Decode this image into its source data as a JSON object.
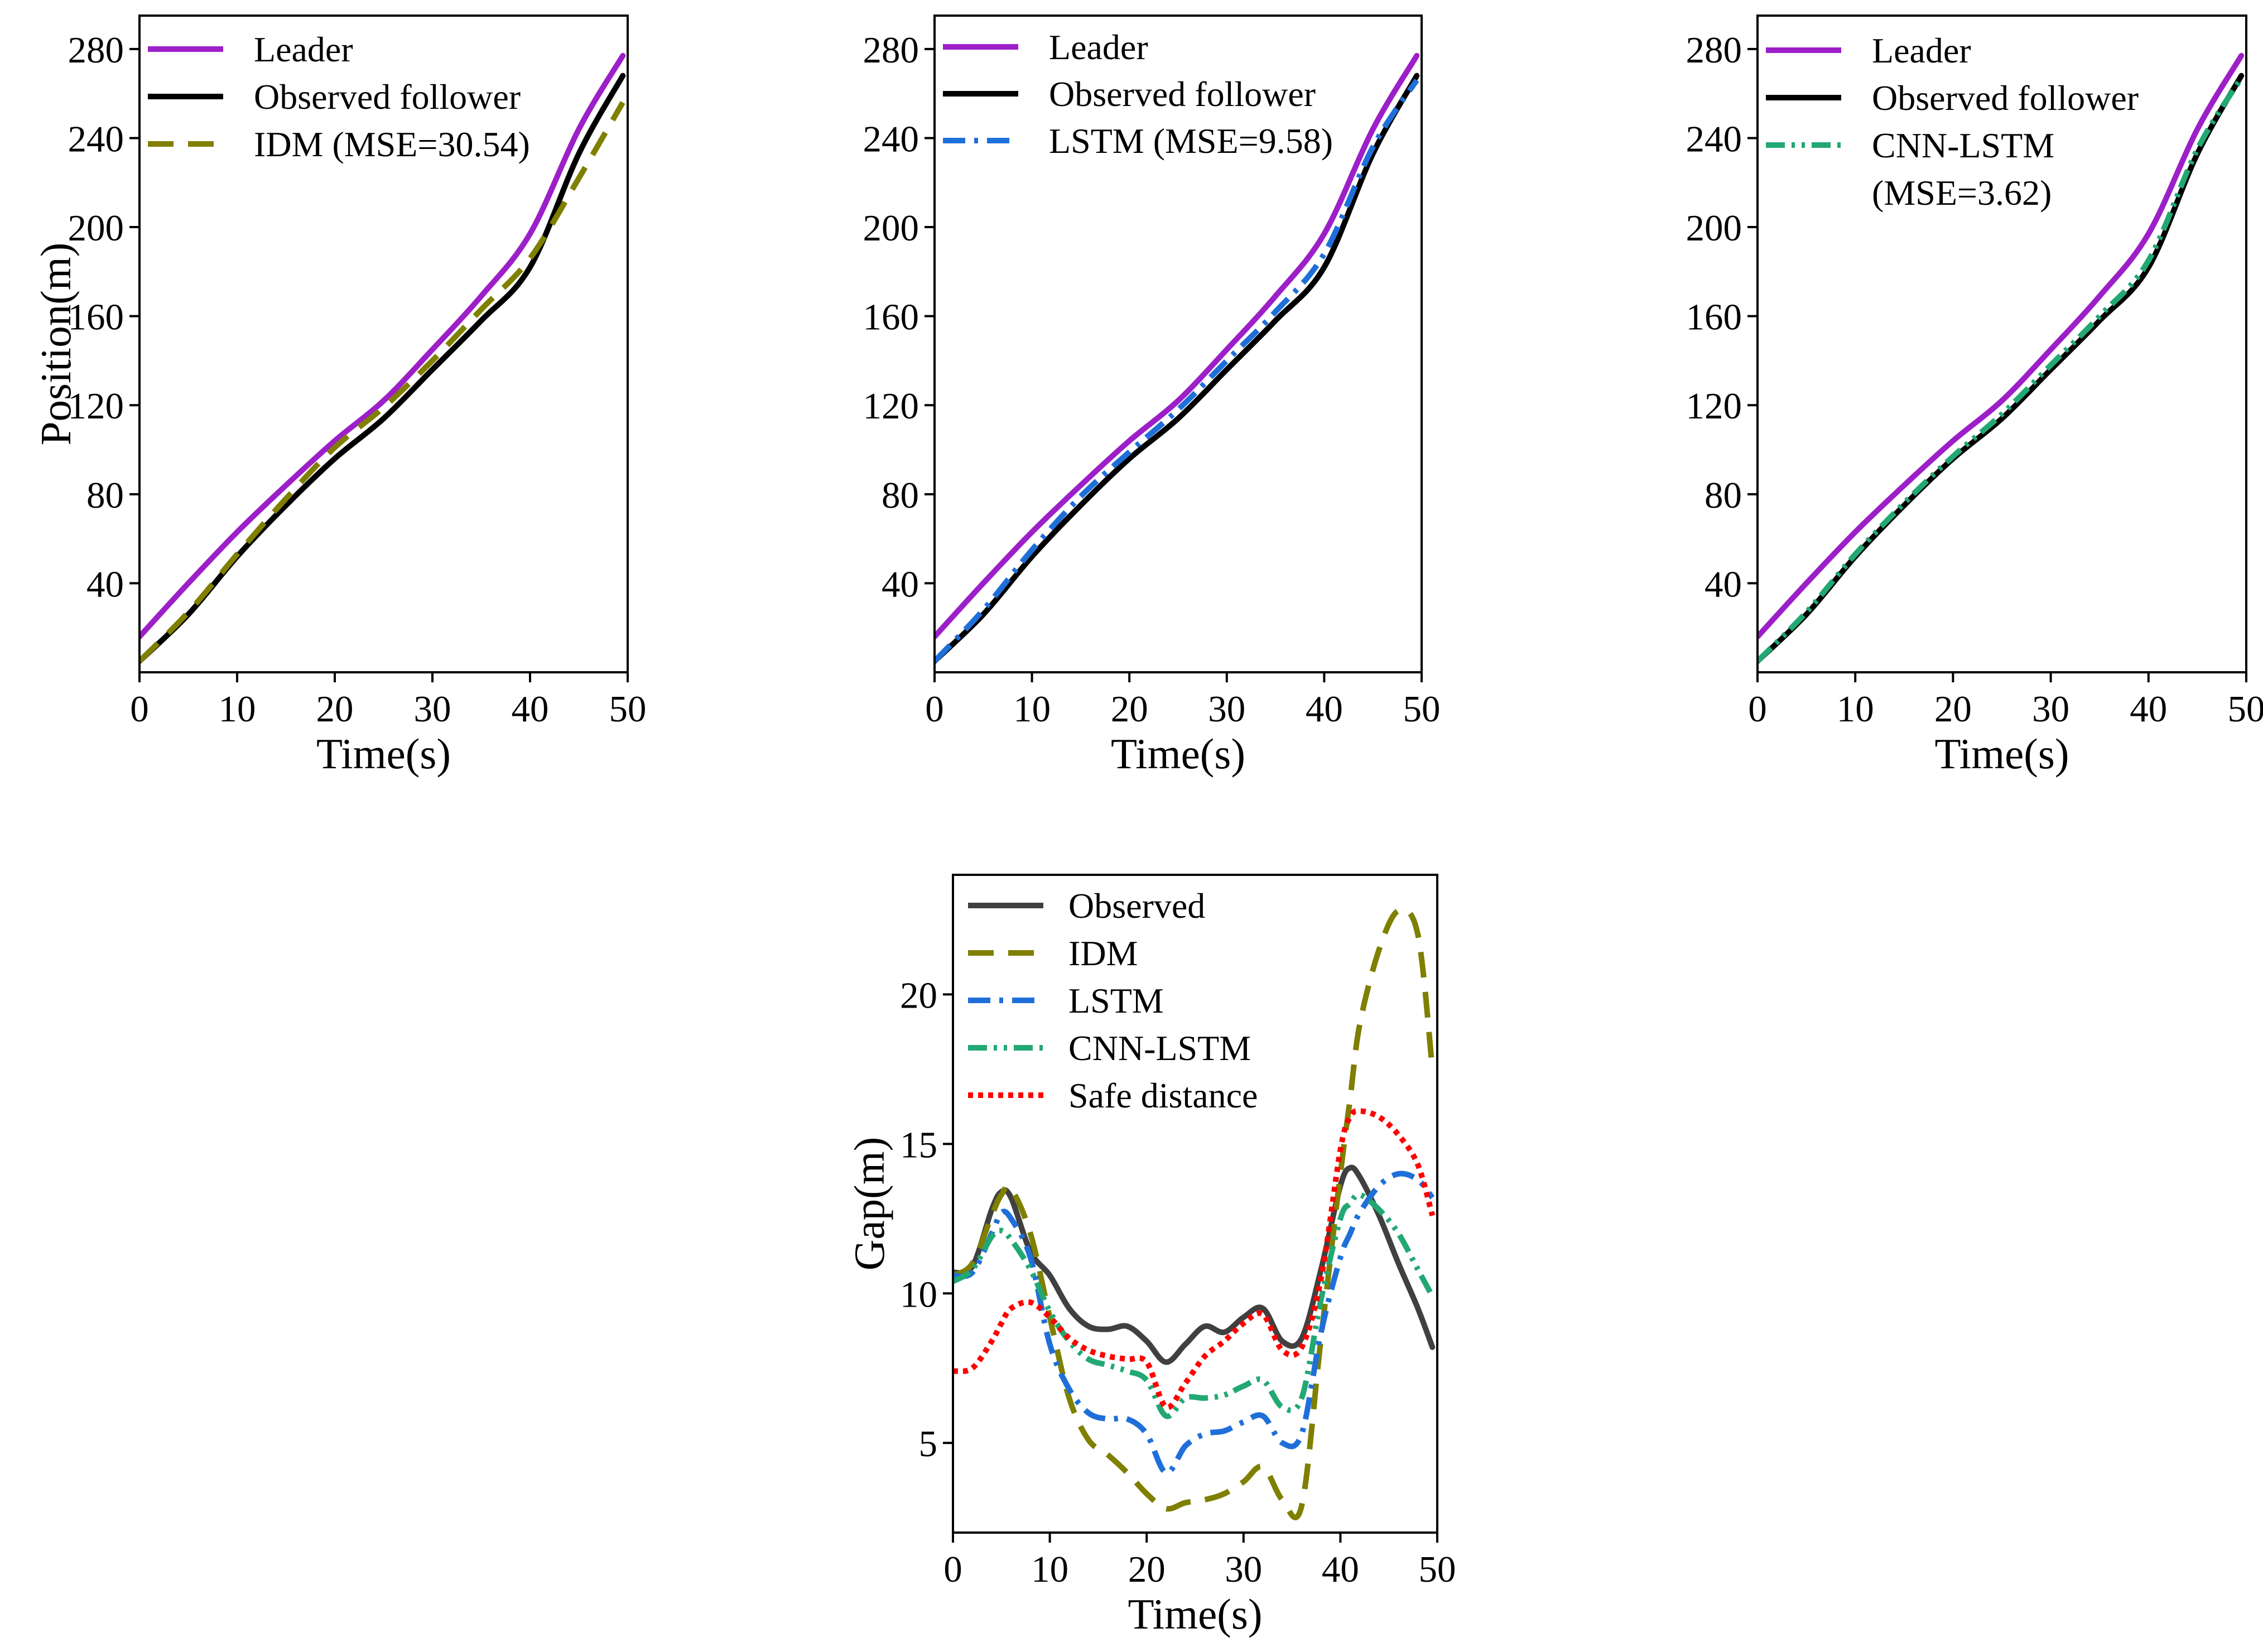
{
  "figure": {
    "colors": {
      "leader": "#9C1FC8",
      "observed_follower": "#000000",
      "observed_gap": "#404040",
      "idm": "#7F7F00",
      "lstm": "#1F6FD9",
      "cnn_lstm": "#22A873",
      "safe_distance": "#FF0000"
    }
  },
  "chart_data": [
    {
      "id": "panel_idm",
      "type": "line",
      "xlabel": "Time(s)",
      "ylabel": "Position(m)",
      "xlim": [
        0,
        50
      ],
      "ylim": [
        0,
        295
      ],
      "xticks": [
        0,
        10,
        20,
        30,
        40,
        50
      ],
      "yticks": [
        40,
        80,
        120,
        160,
        200,
        240,
        280
      ],
      "legend_position": "top-left",
      "x": [
        0,
        5,
        10,
        15,
        20,
        25,
        30,
        35,
        40,
        45,
        49.5
      ],
      "series": [
        {
          "name": "Leader",
          "color_key": "leader",
          "dash": "solid",
          "values": [
            16,
            40,
            63,
            84,
            104,
            122,
            145,
            169,
            197,
            244,
            277
          ]
        },
        {
          "name": "Observed follower",
          "color_key": "observed_follower",
          "dash": "solid",
          "values": [
            5,
            26,
            52,
            75,
            96,
            114,
            136,
            158,
            182,
            233,
            268
          ]
        },
        {
          "name": "IDM (MSE=30.54)",
          "color_key": "idm",
          "dash": "dash",
          "values": [
            5,
            27,
            53,
            78,
            101,
            119,
            140,
            163,
            186,
            222,
            256
          ]
        }
      ]
    },
    {
      "id": "panel_lstm",
      "type": "line",
      "xlabel": "Time(s)",
      "ylabel": "",
      "xlim": [
        0,
        50
      ],
      "ylim": [
        0,
        295
      ],
      "xticks": [
        0,
        10,
        20,
        30,
        40,
        50
      ],
      "yticks": [
        40,
        80,
        120,
        160,
        200,
        240,
        280
      ],
      "legend_position": "top-left",
      "x": [
        0,
        5,
        10,
        15,
        20,
        25,
        30,
        35,
        40,
        45,
        49.5
      ],
      "series": [
        {
          "name": "Leader",
          "color_key": "leader",
          "dash": "solid",
          "values": [
            16,
            40,
            63,
            84,
            104,
            122,
            145,
            169,
            197,
            244,
            277
          ]
        },
        {
          "name": "Observed follower",
          "color_key": "observed_follower",
          "dash": "solid",
          "values": [
            5,
            26,
            52,
            75,
            96,
            114,
            136,
            158,
            182,
            233,
            268
          ]
        },
        {
          "name": "LSTM (MSE=9.58)",
          "color_key": "lstm",
          "dash": "dashdot",
          "values": [
            5,
            28,
            55,
            79,
            99,
            118,
            140,
            162,
            188,
            236,
            266
          ]
        }
      ]
    },
    {
      "id": "panel_cnn_lstm",
      "type": "line",
      "xlabel": "Time(s)",
      "ylabel": "",
      "xlim": [
        0,
        50
      ],
      "ylim": [
        0,
        295
      ],
      "xticks": [
        0,
        10,
        20,
        30,
        40,
        50
      ],
      "yticks": [
        40,
        80,
        120,
        160,
        200,
        240,
        280
      ],
      "legend_position": "top-left",
      "x": [
        0,
        5,
        10,
        15,
        20,
        25,
        30,
        35,
        40,
        45,
        49.5
      ],
      "series": [
        {
          "name": "Leader",
          "color_key": "leader",
          "dash": "solid",
          "values": [
            16,
            40,
            63,
            84,
            104,
            122,
            145,
            169,
            197,
            244,
            277
          ]
        },
        {
          "name": "Observed follower",
          "color_key": "observed_follower",
          "dash": "solid",
          "values": [
            5,
            26,
            52,
            75,
            96,
            114,
            136,
            158,
            182,
            233,
            268
          ]
        },
        {
          "name": "CNN-LSTM",
          "name_line2": "(MSE=3.62)",
          "color_key": "cnn_lstm",
          "dash": "dashdotdot",
          "values": [
            5,
            27,
            53,
            76,
            97,
            116,
            138,
            160,
            185,
            235,
            267
          ]
        }
      ]
    },
    {
      "id": "panel_gap",
      "type": "line",
      "xlabel": "Time(s)",
      "ylabel": "Gap(m)",
      "xlim": [
        0,
        50
      ],
      "ylim": [
        2,
        24
      ],
      "xticks": [
        0,
        10,
        20,
        30,
        40,
        50
      ],
      "yticks": [
        5,
        10,
        15,
        20
      ],
      "legend_position": "top-left",
      "x": [
        0,
        2,
        4,
        5,
        6,
        8,
        10,
        12,
        14,
        16,
        18,
        20,
        22,
        24,
        26,
        28,
        30,
        32,
        34,
        36,
        38,
        40,
        41,
        42,
        44,
        46,
        48,
        49.5
      ],
      "series": [
        {
          "name": "Observed",
          "color_key": "observed_gap",
          "dash": "solid",
          "values": [
            10.7,
            10.9,
            12.8,
            13.4,
            13.2,
            11.4,
            10.6,
            9.5,
            8.9,
            8.8,
            8.9,
            8.4,
            7.7,
            8.3,
            8.9,
            8.7,
            9.2,
            9.5,
            8.4,
            8.5,
            10.8,
            13.6,
            14.2,
            13.9,
            12.6,
            11.0,
            9.5,
            8.2
          ]
        },
        {
          "name": "IDM",
          "color_key": "idm",
          "dash": "dash",
          "values": [
            10.6,
            11.0,
            12.6,
            13.3,
            13.5,
            12.0,
            9.2,
            6.5,
            5.1,
            4.6,
            4.0,
            3.3,
            2.8,
            3.0,
            3.1,
            3.3,
            3.7,
            4.2,
            3.1,
            2.9,
            8.5,
            14.0,
            16.5,
            19.0,
            21.5,
            22.8,
            22.0,
            17.5
          ]
        },
        {
          "name": "LSTM",
          "color_key": "lstm",
          "dash": "dashdot",
          "values": [
            10.6,
            10.7,
            12.0,
            12.7,
            12.5,
            11.2,
            8.3,
            6.8,
            6.0,
            5.8,
            5.8,
            5.3,
            4.0,
            4.9,
            5.3,
            5.4,
            5.7,
            5.9,
            5.0,
            5.3,
            8.7,
            11.2,
            12.0,
            12.7,
            13.6,
            14.0,
            13.8,
            13.2
          ]
        },
        {
          "name": "CNN-LSTM",
          "color_key": "cnn_lstm",
          "dash": "dashdotdot",
          "values": [
            10.4,
            10.8,
            11.9,
            12.1,
            11.8,
            10.8,
            9.4,
            8.4,
            7.8,
            7.6,
            7.4,
            7.1,
            5.9,
            6.5,
            6.5,
            6.6,
            6.9,
            7.1,
            6.2,
            6.5,
            9.8,
            12.5,
            13.0,
            13.3,
            12.8,
            12.0,
            10.8,
            9.9
          ]
        },
        {
          "name": "Safe distance",
          "color_key": "safe_distance",
          "dash": "dot",
          "values": [
            7.4,
            7.5,
            8.4,
            9.0,
            9.5,
            9.7,
            9.2,
            8.5,
            8.1,
            7.9,
            7.8,
            7.7,
            6.2,
            7.0,
            7.9,
            8.4,
            9.0,
            9.3,
            8.1,
            8.2,
            10.5,
            14.8,
            15.9,
            16.1,
            15.9,
            15.3,
            14.3,
            12.6
          ]
        }
      ]
    }
  ]
}
